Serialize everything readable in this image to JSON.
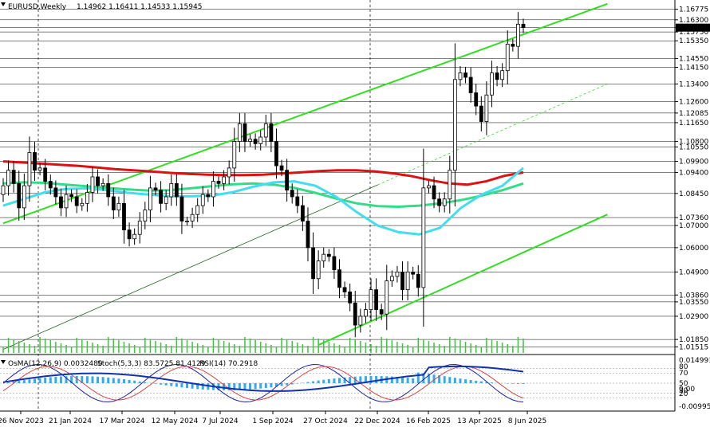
{
  "header": {
    "symbol_tf": "EURUSD,Weekly",
    "ohlc": "1.14962 1.16411 1.14533 1.15945"
  },
  "indicator_header": {
    "osma": "OsMA(12,26,9) 0.0032480",
    "stoch": "Stoch(5,3,3) 83.5725 81.4129",
    "rsi": "RSI(14) 70.2918"
  },
  "colors": {
    "background": "#ffffff",
    "grid": "#000000",
    "candle": "#000000",
    "channel": "#33dd22",
    "ma_red": "#dd1111",
    "ma_green": "#33dd88",
    "ma_cyan": "#44ddee",
    "volume": "#33cc33",
    "osma": "#33aaee",
    "stoch_main": "#2222aa",
    "stoch_signal": "#dd4444",
    "rsi": "#1133aa"
  },
  "chart_data": {
    "type": "candlestick",
    "price_axis_labels": [
      "1.16775",
      "1.16300",
      "1.15945",
      "1.15750",
      "1.15350",
      "1.14550",
      "1.14150",
      "1.13400",
      "1.12600",
      "1.12085",
      "1.11650",
      "1.10800",
      "1.10550",
      "1.09900",
      "1.09400",
      "1.08450",
      "1.07360",
      "1.07000",
      "1.06000",
      "1.04900",
      "1.03860",
      "1.03550",
      "1.02900",
      "1.01850",
      "1.01515"
    ],
    "indicator_axis_labels": [
      "0.014991",
      "80",
      "70",
      "50",
      "30",
      "20",
      "0.00",
      "-0.009951"
    ],
    "time_labels": [
      "26 Nov 2023",
      "21 Jan 2024",
      "17 Mar 2024",
      "12 May 2024",
      "7 Jul 2024",
      "1 Sep 2024",
      "27 Oct 2024",
      "22 Dec 2024",
      "16 Feb 2025",
      "13 Apr 2025",
      "8 Jun 2025"
    ],
    "current_price": 1.15945,
    "ylim": [
      1.0135,
      1.1705
    ],
    "candles_close": [
      1.088,
      1.095,
      1.089,
      1.078,
      1.088,
      1.103,
      1.095,
      1.096,
      1.09,
      1.087,
      1.083,
      1.078,
      1.084,
      1.083,
      1.079,
      1.08,
      1.085,
      1.092,
      1.088,
      1.089,
      1.083,
      1.077,
      1.08,
      1.068,
      1.064,
      1.066,
      1.072,
      1.077,
      1.087,
      1.086,
      1.08,
      1.083,
      1.089,
      1.083,
      1.072,
      1.072,
      1.075,
      1.079,
      1.084,
      1.083,
      1.09,
      1.089,
      1.092,
      1.096,
      1.108,
      1.116,
      1.108,
      1.109,
      1.107,
      1.11,
      1.116,
      1.108,
      1.097,
      1.095,
      1.086,
      1.083,
      1.079,
      1.072,
      1.06,
      1.046,
      1.054,
      1.057,
      1.056,
      1.05,
      1.042,
      1.04,
      1.035,
      1.025,
      1.029,
      1.032,
      1.041,
      1.032,
      1.03,
      1.045,
      1.047,
      1.049,
      1.041,
      1.049,
      1.048,
      1.042,
      1.087,
      1.088,
      1.082,
      1.079,
      1.082,
      1.095,
      1.136,
      1.139,
      1.137,
      1.13,
      1.124,
      1.117,
      1.129,
      1.139,
      1.136,
      1.14,
      1.152,
      1.151,
      1.161,
      1.1595
    ],
    "channel_upper": {
      "from_time_index": 0,
      "from": 1.071,
      "to_time_index": 115,
      "to": 1.1702
    },
    "channel_lower": {
      "from_time_index": 60,
      "from": 1.016,
      "to_time_index": 115,
      "to": 1.075
    },
    "channel_mid": {
      "from_time_index": 0,
      "from": 1.014,
      "to_time_index": 115,
      "to": 1.134
    },
    "ma_red": [
      1.099,
      1.0985,
      1.098,
      1.0975,
      1.097,
      1.0963,
      1.0955,
      1.095,
      1.0944,
      1.0938,
      1.0933,
      1.093,
      1.0928,
      1.0928,
      1.093,
      1.0935,
      1.094,
      1.0946,
      1.095,
      1.095,
      1.0945,
      1.0936,
      1.0923,
      1.0905,
      1.089,
      1.0885,
      1.09,
      1.0925,
      1.094
    ],
    "ma_green": [
      1.089,
      1.0895,
      1.0893,
      1.0885,
      1.0878,
      1.087,
      1.0863,
      1.0858,
      1.086,
      1.0868,
      1.0878,
      1.0886,
      1.089,
      1.0885,
      1.087,
      1.0848,
      1.0822,
      1.08,
      1.0788,
      1.0785,
      1.079,
      1.08,
      1.0815,
      1.0835,
      1.086,
      1.089
    ],
    "ma_cyan": [
      1.079,
      1.082,
      1.085,
      1.0865,
      1.0868,
      1.086,
      1.0848,
      1.084,
      1.0833,
      1.0832,
      1.0835,
      1.085,
      1.0875,
      1.0895,
      1.09,
      1.088,
      1.083,
      1.076,
      1.07,
      1.067,
      1.066,
      1.069,
      1.078,
      1.084,
      1.088,
      1.096
    ]
  }
}
